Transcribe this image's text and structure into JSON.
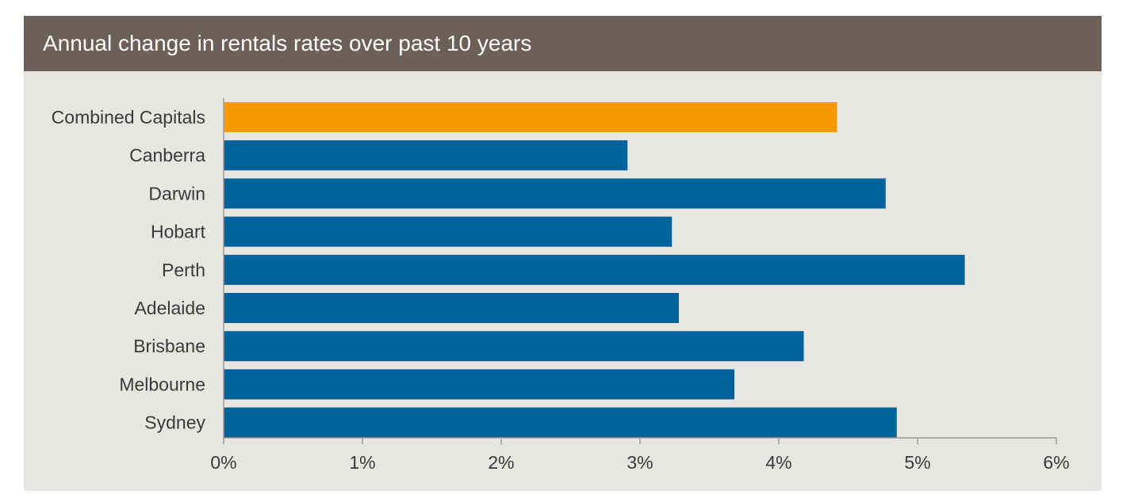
{
  "chart_data": {
    "type": "bar",
    "orientation": "horizontal",
    "title": "Annual change in rentals rates over past 10 years",
    "categories": [
      "Combined Capitals",
      "Canberra",
      "Darwin",
      "Hobart",
      "Perth",
      "Adelaide",
      "Brisbane",
      "Melbourne",
      "Sydney"
    ],
    "values": [
      4.42,
      2.91,
      4.77,
      3.23,
      5.34,
      3.28,
      4.18,
      3.68,
      4.85
    ],
    "bar_colors": [
      "#f79a00",
      "#00629a",
      "#00629a",
      "#00629a",
      "#00629a",
      "#00629a",
      "#00629a",
      "#00629a",
      "#00629a"
    ],
    "xlim": [
      0,
      6
    ],
    "xticks": [
      0,
      1,
      2,
      3,
      4,
      5,
      6
    ],
    "xtick_labels": [
      "0%",
      "1%",
      "2%",
      "3%",
      "4%",
      "5%",
      "6%"
    ],
    "xlabel": "",
    "ylabel": "",
    "grid": false,
    "legend": "none"
  },
  "colors": {
    "header_bg": "#6d6058",
    "panel_bg": "#e8e6e3",
    "highlight_bar": "#f79a00",
    "bar": "#00629a",
    "axis": "#9a9a9a"
  }
}
